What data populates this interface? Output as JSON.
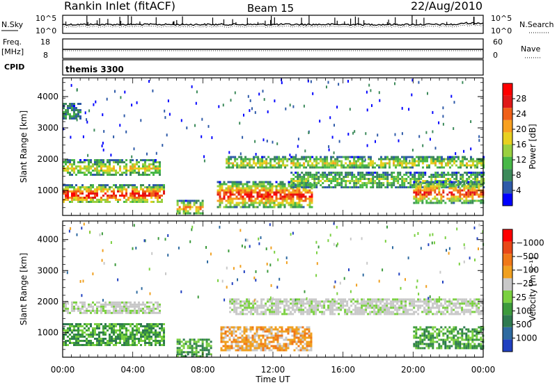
{
  "header": {
    "station": "Rankin Inlet (fitACF)",
    "beam": "Beam 15",
    "date": "22/Aug/2010"
  },
  "noise_panel": {
    "left_label": "N.Sky",
    "right_label": "N.Search",
    "left_ticks": [
      "10^5",
      "10^0"
    ],
    "right_ticks": [
      "10^5",
      "10^0"
    ]
  },
  "freq_panel": {
    "left_label": "Freq.",
    "left_unit": "[MHz]",
    "right_label": "Nave",
    "left_ticks": [
      "18",
      "8"
    ],
    "right_ticks": [
      "60",
      "0"
    ]
  },
  "cpid_panel": {
    "label": "CPID",
    "value": "themis 3300"
  },
  "chart_data": [
    {
      "type": "heatmap",
      "name": "power",
      "ylabel": "Slant Range [km]",
      "ylim": [
        200,
        4600
      ],
      "yticks": [
        1000,
        2000,
        3000,
        4000
      ],
      "xlim": [
        0,
        24
      ],
      "colorbar": {
        "label": "Power [dB]",
        "ticks": [
          4,
          8,
          12,
          16,
          20,
          24,
          28
        ],
        "range": [
          0,
          32
        ],
        "colors": [
          "#0000ff",
          "#2e5aa8",
          "#3c8a5a",
          "#48b848",
          "#9ad040",
          "#e8d020",
          "#f8a020",
          "#f06018",
          "#e01818",
          "#ff0000"
        ]
      },
      "bands": [
        {
          "t0": 0.0,
          "t1": 5.8,
          "r0": 600,
          "r1": 1200,
          "level": 0.85
        },
        {
          "t0": 0.0,
          "t1": 5.5,
          "r0": 1500,
          "r1": 2000,
          "level": 0.45
        },
        {
          "t0": 0.0,
          "t1": 1.0,
          "r0": 3300,
          "r1": 3800,
          "level": 0.1
        },
        {
          "t0": 6.5,
          "t1": 8.0,
          "r0": 250,
          "r1": 700,
          "level": 0.6
        },
        {
          "t0": 8.8,
          "t1": 14.2,
          "r0": 450,
          "r1": 1300,
          "level": 0.8
        },
        {
          "t0": 9.3,
          "t1": 24.0,
          "r0": 1700,
          "r1": 2100,
          "level": 0.4
        },
        {
          "t0": 13.0,
          "t1": 24.0,
          "r0": 1100,
          "r1": 1600,
          "level": 0.3
        },
        {
          "t0": 20.0,
          "t1": 24.0,
          "r0": 600,
          "r1": 1300,
          "level": 0.75
        }
      ]
    },
    {
      "type": "heatmap",
      "name": "velocity",
      "ylabel": "Slant Range [km]",
      "ylim": [
        200,
        4600
      ],
      "yticks": [
        1000,
        2000,
        3000,
        4000
      ],
      "xlim": [
        0,
        24
      ],
      "xlabel": "Time UT",
      "xticks": [
        "00:00",
        "04:00",
        "08:00",
        "12:00",
        "16:00",
        "20:00",
        "00:00"
      ],
      "colorbar": {
        "label": "Velocity [m s⁻¹]",
        "ticks": [
          "1000",
          "500",
          "100",
          "25",
          "−25",
          "−100",
          "−500",
          "−1000"
        ],
        "colors": [
          "#2040c0",
          "#2e6aa0",
          "#2e7a50",
          "#3c9a3c",
          "#7ad040",
          "#c8c8c8",
          "#f0a020",
          "#f07818",
          "#e84818",
          "#ff0000"
        ]
      },
      "bands": [
        {
          "t0": 0.0,
          "t1": 5.8,
          "r0": 600,
          "r1": 1300,
          "level": "slow-positive"
        },
        {
          "t0": 0.0,
          "t1": 5.5,
          "r0": 1600,
          "r1": 2000,
          "level": "near-zero"
        },
        {
          "t0": 6.5,
          "t1": 8.5,
          "r0": 250,
          "r1": 800,
          "level": "slow-positive"
        },
        {
          "t0": 9.0,
          "t1": 14.2,
          "r0": 450,
          "r1": 1200,
          "level": "negative"
        },
        {
          "t0": 9.5,
          "t1": 24.0,
          "r0": 1600,
          "r1": 2100,
          "level": "near-zero"
        },
        {
          "t0": 20.0,
          "t1": 24.0,
          "r0": 500,
          "r1": 1200,
          "level": "slow-positive"
        }
      ]
    }
  ]
}
